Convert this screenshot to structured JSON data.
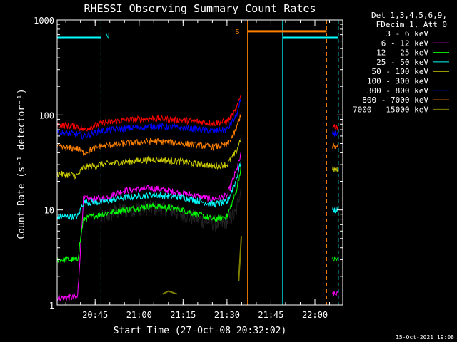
{
  "chart_data": {
    "type": "line",
    "title": "RHESSI Observing Summary Count Rates",
    "xlabel": "Start Time (27-Oct-08 20:32:02)",
    "ylabel": "Count Rate (s⁻¹ detector⁻¹)",
    "yscale": "log",
    "ylim": [
      1,
      1000
    ],
    "xlim": [
      "20:32:02",
      "22:09:30"
    ],
    "ytick_labels": [
      "1",
      "10",
      "100",
      "1000"
    ],
    "xtick_labels": [
      "20:45",
      "21:00",
      "21:15",
      "21:30",
      "21:45",
      "22:00"
    ],
    "legend_header": [
      "Det 1,3,4,5,6,9,",
      "FDecim 1, Att 0"
    ],
    "legend_position": "right",
    "footer_date": "15-Oct-2021 19:08",
    "annotations": [
      {
        "text": "N",
        "x": "20:47",
        "y": 680,
        "color": "#00ffff"
      },
      {
        "text": "S",
        "x": "21:36",
        "y": 760,
        "color": "#ff8000"
      }
    ],
    "interval_bars": [
      {
        "x0": "20:32:02",
        "x1": "20:47",
        "y": 650,
        "color": "#00ffff"
      },
      {
        "x0": "21:37",
        "x1": "22:04",
        "y": 760,
        "color": "#ff8000"
      },
      {
        "x0": "21:49",
        "x1": "22:08",
        "y": 650,
        "color": "#00ffff"
      }
    ],
    "vertical_lines": [
      {
        "x": "20:32:02",
        "style": "solid",
        "color": "#00ffff"
      },
      {
        "x": "20:47",
        "style": "dashed",
        "color": "#00ffff"
      },
      {
        "x": "21:37",
        "style": "solid",
        "color": "#ff8000"
      },
      {
        "x": "21:49",
        "style": "solid",
        "color": "#00ffff"
      },
      {
        "x": "22:04",
        "style": "dashed",
        "color": "#ff8000"
      },
      {
        "x": "22:08",
        "style": "dashed",
        "color": "#00ffff"
      }
    ],
    "series": [
      {
        "name": "3 - 6 keV",
        "color": "#000000",
        "points": [
          [
            "20:47",
            8
          ],
          [
            "20:52",
            9.5
          ],
          [
            "21:00",
            10.5
          ],
          [
            "21:05",
            10.5
          ],
          [
            "21:10",
            10
          ],
          [
            "21:20",
            8
          ],
          [
            "21:28",
            7
          ],
          [
            "21:33",
            9
          ],
          [
            "21:35",
            20
          ]
        ]
      },
      {
        "name": "6 - 12 keV",
        "color": "#ff00ff",
        "points": [
          [
            "20:32",
            1.2
          ],
          [
            "20:39",
            1.2
          ],
          [
            "20:41",
            13
          ],
          [
            "20:47",
            13
          ],
          [
            "20:55",
            16
          ],
          [
            "21:05",
            17
          ],
          [
            "21:15",
            15
          ],
          [
            "21:25",
            13
          ],
          [
            "21:30",
            14
          ],
          [
            "21:33",
            25
          ],
          [
            "21:35",
            40
          ],
          [
            "22:06",
            1.3
          ],
          [
            "22:08",
            1.3
          ]
        ]
      },
      {
        "name": "12 - 25 keV",
        "color": "#00ff00",
        "points": [
          [
            "20:32",
            3
          ],
          [
            "20:39",
            3
          ],
          [
            "20:41",
            8
          ],
          [
            "20:47",
            9
          ],
          [
            "20:55",
            10
          ],
          [
            "21:05",
            11
          ],
          [
            "21:15",
            10
          ],
          [
            "21:25",
            8
          ],
          [
            "21:30",
            8.5
          ],
          [
            "21:33",
            15
          ],
          [
            "21:35",
            30
          ],
          [
            "22:06",
            3
          ],
          [
            "22:08",
            3
          ]
        ]
      },
      {
        "name": "25 - 50 keV",
        "color": "#00ffff",
        "points": [
          [
            "20:32",
            8.5
          ],
          [
            "20:39",
            8.5
          ],
          [
            "20:41",
            12
          ],
          [
            "20:47",
            12
          ],
          [
            "20:55",
            13.5
          ],
          [
            "21:05",
            14.5
          ],
          [
            "21:15",
            13.5
          ],
          [
            "21:25",
            11.5
          ],
          [
            "21:30",
            12
          ],
          [
            "21:33",
            20
          ],
          [
            "21:35",
            35
          ],
          [
            "22:06",
            10
          ],
          [
            "22:08",
            10
          ]
        ]
      },
      {
        "name": "50 - 100 keV",
        "color": "#cccc00",
        "points": [
          [
            "20:32",
            24
          ],
          [
            "20:39",
            23
          ],
          [
            "20:41",
            28
          ],
          [
            "20:47",
            30
          ],
          [
            "20:55",
            32
          ],
          [
            "21:05",
            34
          ],
          [
            "21:15",
            32
          ],
          [
            "21:25",
            29
          ],
          [
            "21:30",
            30
          ],
          [
            "21:33",
            40
          ],
          [
            "21:35",
            60
          ],
          [
            "22:06",
            27
          ],
          [
            "22:08",
            26
          ]
        ]
      },
      {
        "name": "100 - 300 keV",
        "color": "#ff0000",
        "points": [
          [
            "20:32",
            78
          ],
          [
            "20:39",
            76
          ],
          [
            "20:41",
            70
          ],
          [
            "20:47",
            82
          ],
          [
            "20:55",
            88
          ],
          [
            "21:05",
            92
          ],
          [
            "21:15",
            88
          ],
          [
            "21:25",
            82
          ],
          [
            "21:30",
            85
          ],
          [
            "21:33",
            110
          ],
          [
            "21:35",
            170
          ],
          [
            "22:06",
            77
          ],
          [
            "22:08",
            75
          ]
        ]
      },
      {
        "name": "300 - 800 keV",
        "color": "#0000ff",
        "points": [
          [
            "20:32",
            65
          ],
          [
            "20:39",
            63
          ],
          [
            "20:41",
            60
          ],
          [
            "20:47",
            68
          ],
          [
            "20:55",
            72
          ],
          [
            "21:05",
            76
          ],
          [
            "21:15",
            73
          ],
          [
            "21:25",
            68
          ],
          [
            "21:30",
            70
          ],
          [
            "21:33",
            95
          ],
          [
            "21:35",
            150
          ],
          [
            "22:06",
            65
          ],
          [
            "22:08",
            63
          ]
        ]
      },
      {
        "name": "800 - 7000 keV",
        "color": "#ff8000",
        "points": [
          [
            "20:32",
            46
          ],
          [
            "20:39",
            44
          ],
          [
            "20:41",
            40
          ],
          [
            "20:47",
            47
          ],
          [
            "20:55",
            50
          ],
          [
            "21:05",
            53
          ],
          [
            "21:15",
            50
          ],
          [
            "21:25",
            46
          ],
          [
            "21:30",
            48
          ],
          [
            "21:33",
            68
          ],
          [
            "21:35",
            110
          ],
          [
            "22:06",
            47
          ],
          [
            "22:08",
            45
          ]
        ]
      },
      {
        "name": "7000 - 15000 keV",
        "color": "#808000",
        "points": [
          [
            "21:08",
            1.3
          ],
          [
            "21:10",
            1.4
          ],
          [
            "21:13",
            1.3
          ],
          [
            "21:34",
            1.8
          ],
          [
            "21:35",
            6
          ]
        ]
      }
    ]
  }
}
